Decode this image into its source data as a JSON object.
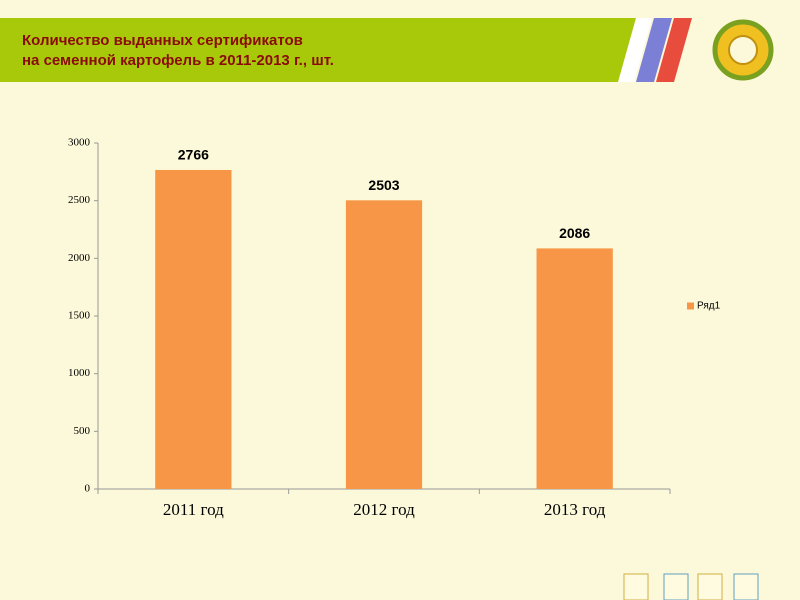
{
  "chart_data": {
    "type": "bar",
    "title": [
      "Количество выданных сертификатов",
      "на семенной картофель в 2011-2013 г., шт."
    ],
    "categories": [
      "2011 год",
      "2012 год",
      "2013 год"
    ],
    "series": [
      {
        "name": "Ряд1",
        "color": "#f79646",
        "values": [
          2766,
          2503,
          2086
        ]
      }
    ],
    "ylim": [
      0,
      3000
    ],
    "yticks": [
      0,
      500,
      1000,
      1500,
      2000,
      2500,
      3000
    ],
    "grid": false,
    "legend": "right"
  }
}
